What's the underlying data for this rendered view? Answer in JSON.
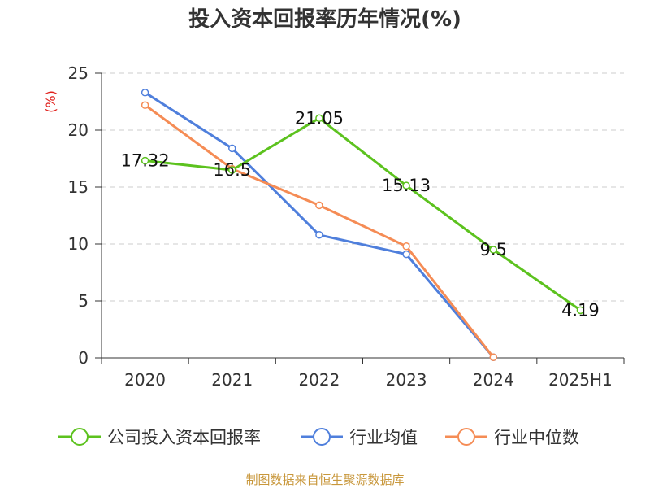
{
  "chart_data": {
    "type": "line",
    "title": "投入资本回报率历年情况(%)",
    "ylabel": "(%)",
    "xlabel": "",
    "categories": [
      "2020",
      "2021",
      "2022",
      "2023",
      "2024",
      "2025H1"
    ],
    "ylim": [
      0,
      25
    ],
    "yticks": [
      0,
      5,
      10,
      15,
      20,
      25
    ],
    "grid": true,
    "legend_position": "bottom",
    "series": [
      {
        "name": "公司投入资本回报率",
        "color": "#5cc21e",
        "values": [
          17.32,
          16.5,
          21.05,
          15.13,
          9.5,
          4.19
        ],
        "labels": [
          "17.32",
          "16.5",
          "21.05",
          "15.13",
          "9.5",
          "4.19"
        ]
      },
      {
        "name": "行业均值",
        "color": "#4f7fdc",
        "values": [
          23.3,
          18.4,
          10.8,
          9.1,
          0.05,
          null
        ]
      },
      {
        "name": "行业中位数",
        "color": "#f58c55",
        "values": [
          22.2,
          16.6,
          13.4,
          9.8,
          0.05,
          null
        ]
      }
    ]
  },
  "source": "制图数据来自恒生聚源数据库"
}
